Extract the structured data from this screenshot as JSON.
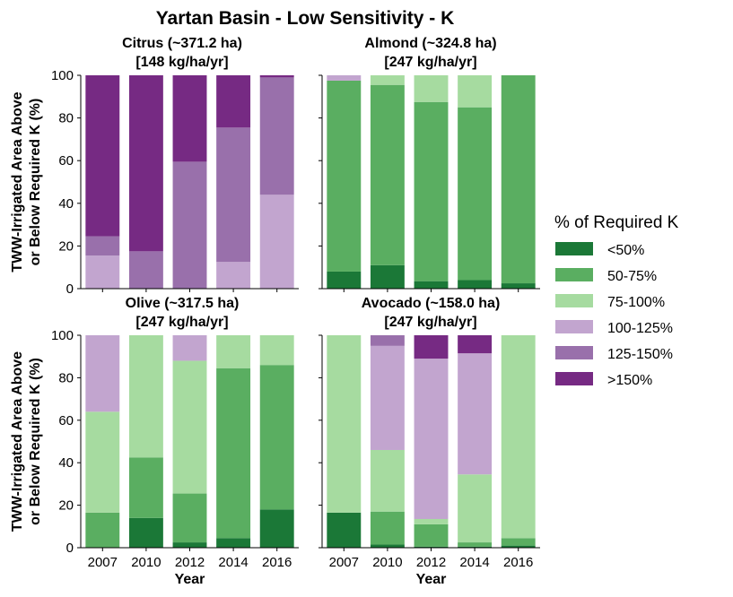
{
  "figure": {
    "title": "Yartan Basin - Low Sensitivity - K"
  },
  "legend": {
    "title": "% of Required K",
    "items": [
      {
        "label": "<50%",
        "color": "#1b7837"
      },
      {
        "label": "50-75%",
        "color": "#5aae61"
      },
      {
        "label": "75-100%",
        "color": "#a6dba0"
      },
      {
        "label": "100-125%",
        "color": "#c2a5cf"
      },
      {
        "label": "125-150%",
        "color": "#9970ab"
      },
      {
        "label": ">150%",
        "color": "#762a83"
      }
    ]
  },
  "chart_data": [
    {
      "type": "bar",
      "stacked": true,
      "title_line1": "Citrus (~371.2 ha)",
      "title_line2": "[148 kg/ha/yr]",
      "categories": [
        "2007",
        "2010",
        "2012",
        "2014",
        "2016"
      ],
      "xlabel": "",
      "ylabel_line1": "TWW-Irrigated Area Above",
      "ylabel_line2": "or Below Required K (%)",
      "ylim": [
        0,
        100
      ],
      "yticks": [
        0,
        20,
        40,
        60,
        80,
        100
      ],
      "series": [
        {
          "name": "<50%",
          "values": [
            0,
            0,
            0,
            0,
            0
          ]
        },
        {
          "name": "50-75%",
          "values": [
            0,
            0,
            0,
            0,
            0
          ]
        },
        {
          "name": "75-100%",
          "values": [
            0,
            0,
            0,
            0,
            0
          ]
        },
        {
          "name": "100-125%",
          "values": [
            15.5,
            0,
            0,
            12.5,
            44
          ]
        },
        {
          "name": "125-150%",
          "values": [
            9,
            17.5,
            59.5,
            63,
            55
          ]
        },
        {
          "name": ">150%",
          "values": [
            75.5,
            82.5,
            40.5,
            24.5,
            1
          ]
        }
      ]
    },
    {
      "type": "bar",
      "stacked": true,
      "title_line1": "Almond (~324.8 ha)",
      "title_line2": "[247 kg/ha/yr]",
      "categories": [
        "2007",
        "2010",
        "2012",
        "2014",
        "2016"
      ],
      "xlabel": "",
      "ylabel_line1": "",
      "ylabel_line2": "",
      "ylim": [
        0,
        100
      ],
      "yticks": [
        0,
        20,
        40,
        60,
        80,
        100
      ],
      "series": [
        {
          "name": "<50%",
          "values": [
            8,
            11,
            3.5,
            4,
            2.5
          ]
        },
        {
          "name": "50-75%",
          "values": [
            89.5,
            84.5,
            84,
            81,
            97.5
          ]
        },
        {
          "name": "75-100%",
          "values": [
            0,
            4.5,
            12.5,
            15,
            0
          ]
        },
        {
          "name": "100-125%",
          "values": [
            2.5,
            0,
            0,
            0,
            0
          ]
        },
        {
          "name": "125-150%",
          "values": [
            0,
            0,
            0,
            0,
            0
          ]
        },
        {
          "name": ">150%",
          "values": [
            0,
            0,
            0,
            0,
            0
          ]
        }
      ]
    },
    {
      "type": "bar",
      "stacked": true,
      "title_line1": "Olive (~317.5 ha)",
      "title_line2": "[247 kg/ha/yr]",
      "categories": [
        "2007",
        "2010",
        "2012",
        "2014",
        "2016"
      ],
      "xlabel": "Year",
      "ylabel_line1": "TWW-Irrigated Area Above",
      "ylabel_line2": "or Below Required K (%)",
      "ylim": [
        0,
        100
      ],
      "yticks": [
        0,
        20,
        40,
        60,
        80,
        100
      ],
      "series": [
        {
          "name": "<50%",
          "values": [
            0,
            14,
            2.5,
            4.5,
            18
          ]
        },
        {
          "name": "50-75%",
          "values": [
            16.5,
            28.5,
            23,
            80,
            68
          ]
        },
        {
          "name": "75-100%",
          "values": [
            47.5,
            57.5,
            62.5,
            15.5,
            14
          ]
        },
        {
          "name": "100-125%",
          "values": [
            36,
            0,
            12,
            0,
            0
          ]
        },
        {
          "name": "125-150%",
          "values": [
            0,
            0,
            0,
            0,
            0
          ]
        },
        {
          "name": ">150%",
          "values": [
            0,
            0,
            0,
            0,
            0
          ]
        }
      ]
    },
    {
      "type": "bar",
      "stacked": true,
      "title_line1": "Avocado (~158.0 ha)",
      "title_line2": "[247 kg/ha/yr]",
      "categories": [
        "2007",
        "2010",
        "2012",
        "2014",
        "2016"
      ],
      "xlabel": "Year",
      "ylabel_line1": "",
      "ylabel_line2": "",
      "ylim": [
        0,
        100
      ],
      "yticks": [
        0,
        20,
        40,
        60,
        80,
        100
      ],
      "series": [
        {
          "name": "<50%",
          "values": [
            16.5,
            1.5,
            0.5,
            0.5,
            1
          ]
        },
        {
          "name": "50-75%",
          "values": [
            0,
            15.5,
            10.5,
            2,
            3.5
          ]
        },
        {
          "name": "75-100%",
          "values": [
            83.5,
            29,
            2.5,
            32,
            95.5
          ]
        },
        {
          "name": "100-125%",
          "values": [
            0,
            49,
            75.5,
            57,
            0
          ]
        },
        {
          "name": "125-150%",
          "values": [
            0,
            5,
            0,
            0,
            0
          ]
        },
        {
          "name": ">150%",
          "values": [
            0,
            0,
            11,
            8.5,
            0
          ]
        }
      ]
    }
  ]
}
